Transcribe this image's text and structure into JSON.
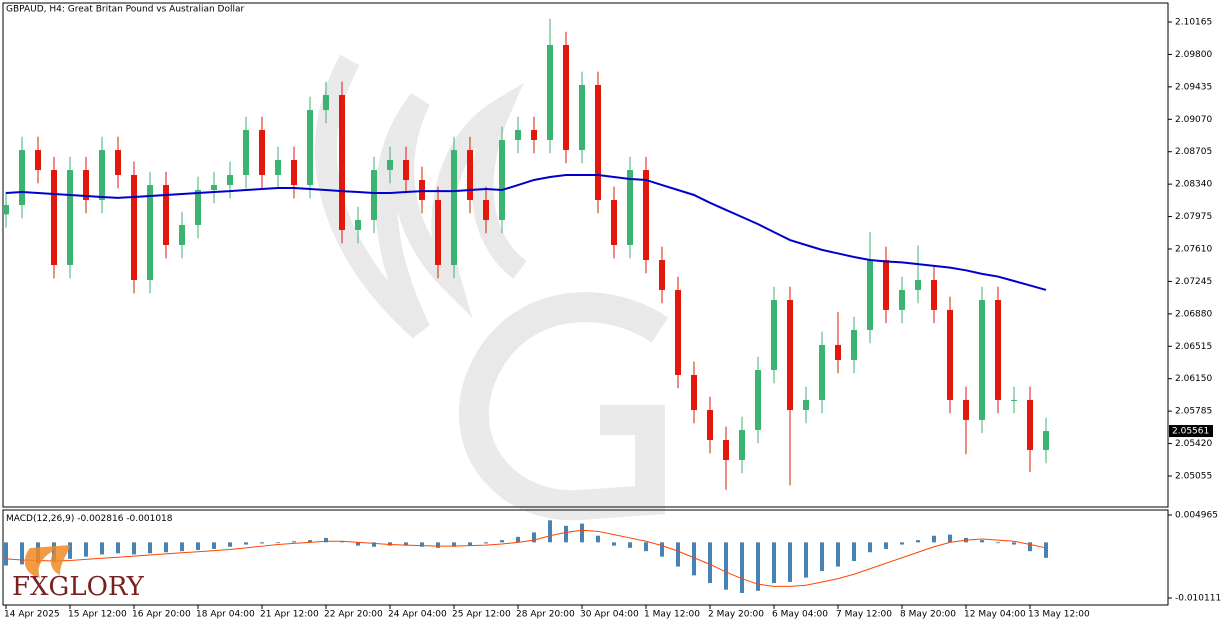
{
  "chart_data": [
    {
      "type": "candlestick",
      "title": "GBPAUD, H4:  Great Britan Pound vs Australian Dollar",
      "brand": "FXGLORY",
      "up_color": "#3cb371",
      "down_color": "#e3170a",
      "last_price_color": "#000000",
      "open": [
        2.08,
        2.08105,
        2.08724,
        2.08499,
        2.0743,
        2.08499,
        2.08162,
        2.08724,
        2.08443,
        2.07261,
        2.0833,
        2.07655,
        2.0788,
        2.08274,
        2.0833,
        2.08443,
        2.0895,
        2.08443,
        2.08612,
        2.0833,
        2.09175,
        2.09343,
        2.07824,
        2.07937,
        2.08499,
        2.08612,
        2.08387,
        2.08162,
        2.0743,
        2.08724,
        2.08162,
        2.07937,
        2.08837,
        2.0895,
        2.08837,
        2.09906,
        2.08724,
        2.09456,
        2.08162,
        2.07655,
        2.08499,
        2.07486,
        2.07149,
        2.06192,
        2.05798,
        2.0546,
        2.05235,
        2.05573,
        2.06248,
        2.07036,
        2.05798,
        2.05911,
        2.0653,
        2.06361,
        2.06699,
        2.07486,
        2.06924,
        2.07149,
        2.07261,
        2.06924,
        2.05911,
        2.05686,
        2.07036,
        2.05911,
        2.05911,
        2.05348
      ],
      "high": [
        2.08255,
        2.08874,
        2.08874,
        2.08649,
        2.08649,
        2.08649,
        2.08874,
        2.08874,
        2.08593,
        2.0848,
        2.0848,
        2.0803,
        2.08424,
        2.0848,
        2.08593,
        2.091,
        2.091,
        2.08762,
        2.08762,
        2.09325,
        2.09493,
        2.09493,
        2.08087,
        2.08649,
        2.08762,
        2.08762,
        2.08537,
        2.08312,
        2.08874,
        2.08874,
        2.08312,
        2.08987,
        2.091,
        2.091,
        2.102,
        2.10056,
        2.09606,
        2.09606,
        2.08312,
        2.08649,
        2.08649,
        2.07636,
        2.07299,
        2.06342,
        2.05948,
        2.0561,
        2.05723,
        2.06398,
        2.07186,
        2.07186,
        2.06061,
        2.0668,
        2.069,
        2.06849,
        2.078,
        2.07636,
        2.07299,
        2.0765,
        2.07411,
        2.07074,
        2.06061,
        2.07186,
        2.07186,
        2.06061,
        2.06061,
        2.05711
      ],
      "low": [
        2.0785,
        2.07955,
        2.08349,
        2.0728,
        2.0728,
        2.08012,
        2.08012,
        2.08293,
        2.07111,
        2.07111,
        2.07505,
        2.07505,
        2.0773,
        2.08124,
        2.0818,
        2.08293,
        2.08293,
        2.08293,
        2.0818,
        2.0818,
        2.09025,
        2.07674,
        2.07674,
        2.07787,
        2.08349,
        2.08237,
        2.08012,
        2.0728,
        2.0728,
        2.08012,
        2.07787,
        2.07787,
        2.08687,
        2.08687,
        2.08687,
        2.08574,
        2.08574,
        2.08012,
        2.07505,
        2.07505,
        2.07336,
        2.06999,
        2.06042,
        2.05648,
        2.0531,
        2.049,
        2.05085,
        2.05423,
        2.06098,
        2.0495,
        2.05648,
        2.05761,
        2.06211,
        2.06211,
        2.06549,
        2.06774,
        2.06774,
        2.06999,
        2.06774,
        2.05761,
        2.053,
        2.05536,
        2.05761,
        2.05761,
        2.051,
        2.05198
      ],
      "close": [
        2.08105,
        2.08724,
        2.08499,
        2.0743,
        2.08499,
        2.08162,
        2.08724,
        2.08443,
        2.07261,
        2.0833,
        2.07655,
        2.0788,
        2.08274,
        2.0833,
        2.08443,
        2.0895,
        2.08443,
        2.08612,
        2.0833,
        2.09175,
        2.09343,
        2.07824,
        2.07937,
        2.08499,
        2.08612,
        2.08387,
        2.08162,
        2.0743,
        2.08724,
        2.08162,
        2.07937,
        2.08837,
        2.0895,
        2.08837,
        2.09906,
        2.08724,
        2.09456,
        2.08162,
        2.07655,
        2.08499,
        2.07486,
        2.07149,
        2.06192,
        2.05798,
        2.0546,
        2.05235,
        2.05573,
        2.06248,
        2.07036,
        2.05798,
        2.05911,
        2.0653,
        2.06361,
        2.06699,
        2.07486,
        2.06924,
        2.07149,
        2.07261,
        2.06924,
        2.05911,
        2.05686,
        2.07036,
        2.05911,
        2.05911,
        2.05348,
        2.05561
      ],
      "lines": [
        {
          "color": "#0000cd",
          "values": [
            2.0824,
            2.08251,
            2.0824,
            2.08229,
            2.08218,
            2.08207,
            2.08196,
            2.08185,
            2.08196,
            2.08207,
            2.08218,
            2.08229,
            2.0824,
            2.08251,
            2.08262,
            2.08274,
            2.08285,
            2.08296,
            2.08296,
            2.08285,
            2.08274,
            2.08262,
            2.08251,
            2.0824,
            2.0824,
            2.08251,
            2.08262,
            2.08262,
            2.08262,
            2.08274,
            2.08285,
            2.08274,
            2.0833,
            2.08387,
            2.0842,
            2.08443,
            2.08443,
            2.08443,
            2.0842,
            2.08398,
            2.08387,
            2.0833,
            2.08274,
            2.08218,
            2.0813,
            2.0805,
            2.0797,
            2.0789,
            2.078,
            2.07711,
            2.07655,
            2.076,
            2.0756,
            2.0752,
            2.07486,
            2.0747,
            2.0746,
            2.0744,
            2.0742,
            2.074,
            2.0737,
            2.0733,
            2.073,
            2.0725,
            2.072,
            2.07149
          ]
        }
      ],
      "ylim": [
        2.04706,
        2.10379
      ],
      "yticks": [
        2.10165,
        {
          "value": 2.098,
          "label": "2.09800"
        },
        2.09435,
        {
          "value": 2.0907,
          "label": "2.09070"
        },
        2.08705,
        {
          "value": 2.0834,
          "label": "2.08340"
        },
        2.07975,
        {
          "value": 2.0761,
          "label": "2.07610"
        },
        2.07245,
        {
          "value": 2.0688,
          "label": "2.06880"
        },
        2.06515,
        {
          "value": 2.0615,
          "label": "2.06150"
        },
        2.05785,
        {
          "value": 2.0542,
          "label": "2.05420"
        },
        2.05055
      ]
    },
    {
      "type": "macd",
      "title": "MACD(12,26,9)",
      "categories": [
        "14 Apr 2025",
        null,
        null,
        null,
        "15 Apr 12:00",
        null,
        null,
        null,
        "16 Apr 20:00",
        null,
        null,
        null,
        "18 Apr 04:00",
        null,
        null,
        null,
        "21 Apr 12:00",
        null,
        null,
        null,
        "22 Apr 20:00",
        null,
        null,
        null,
        "24 Apr 04:00",
        null,
        null,
        null,
        "25 Apr 12:00",
        null,
        null,
        null,
        "28 Apr 20:00",
        null,
        null,
        null,
        "30 Apr 04:00",
        null,
        null,
        null,
        "1 May 12:00",
        null,
        null,
        null,
        "2 May 20:00",
        null,
        null,
        null,
        "6 May 04:00",
        null,
        null,
        null,
        "7 May 12:00",
        null,
        null,
        null,
        "8 May 20:00",
        null,
        null,
        null,
        "12 May 04:00",
        null,
        null,
        null,
        "13 May 12:00",
        null
      ],
      "series": [
        {
          "type": "bar",
          "color": "#4682b4",
          "values": [
            -0.0042,
            -0.004,
            -0.0038,
            -0.0036,
            -0.003,
            -0.0026,
            -0.0022,
            -0.002,
            -0.0022,
            -0.002,
            -0.0018,
            -0.0016,
            -0.0014,
            -0.0012,
            -0.0008,
            -0.0004,
            -0.0002,
            0,
            0.0002,
            0.0004,
            0.0008,
            0.0002,
            -0.0006,
            -0.0008,
            -0.0006,
            -0.0006,
            -0.0008,
            -0.001,
            -0.0008,
            -0.0006,
            -0.0002,
            0.0004,
            0.001,
            0.0018,
            0.004,
            0.003,
            0.0034,
            0.0012,
            -0.0006,
            -0.001,
            -0.0016,
            -0.0026,
            -0.0044,
            -0.006,
            -0.0074,
            -0.0086,
            -0.0092,
            -0.0088,
            -0.0074,
            -0.0072,
            -0.0064,
            -0.0052,
            -0.0044,
            -0.0034,
            -0.0018,
            -0.0012,
            -0.0004,
            0.0004,
            0.0012,
            0.0014,
            0.0008,
            0.0004,
            0,
            -0.0004,
            -0.0016,
            -0.002816
          ]
        },
        {
          "type": "line",
          "color": "#ff4500",
          "values": [
            -0.003,
            -0.0032,
            -0.0033,
            -0.0034,
            -0.0033,
            -0.0031,
            -0.0029,
            -0.0027,
            -0.0025,
            -0.0023,
            -0.0021,
            -0.0019,
            -0.0017,
            -0.0015,
            -0.0013,
            -0.001,
            -0.0007,
            -0.0004,
            -0.0002,
            0,
            0.0002,
            0.0002,
            0,
            -0.0002,
            -0.0004,
            -0.0005,
            -0.0006,
            -0.0007,
            -0.0007,
            -0.0006,
            -0.0005,
            -0.0003,
            0,
            0.0004,
            0.0012,
            0.0018,
            0.0022,
            0.002,
            0.0014,
            0.0008,
            0.0002,
            -0.0006,
            -0.0016,
            -0.0028,
            -0.004,
            -0.0054,
            -0.0066,
            -0.0076,
            -0.008,
            -0.008,
            -0.0078,
            -0.0072,
            -0.0066,
            -0.0058,
            -0.0048,
            -0.0038,
            -0.0028,
            -0.0018,
            -0.0008,
            0,
            0.0004,
            0.0006,
            0.0004,
            0.0002,
            -0.0004,
            -0.001018
          ]
        }
      ],
      "ylim": [
        -0.011383,
        0.005873
      ],
      "yticks": [
        0.004965,
        -0.010111
      ]
    }
  ]
}
